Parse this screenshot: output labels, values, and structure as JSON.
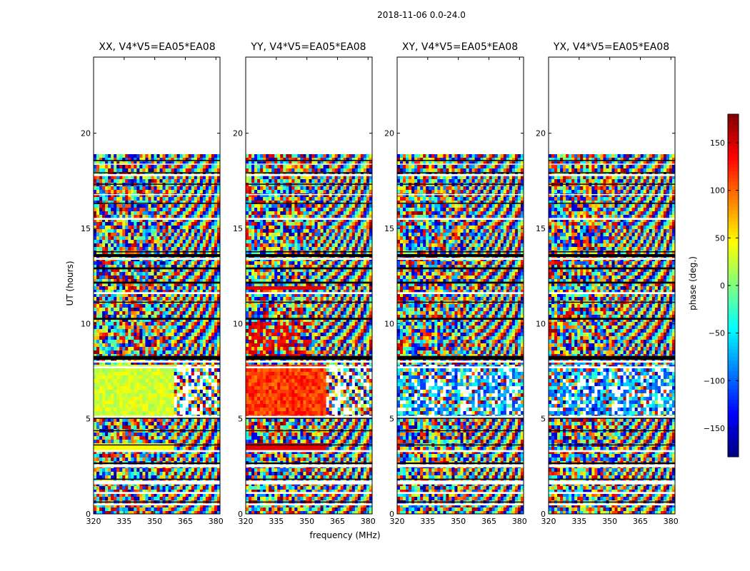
{
  "figure": {
    "suptitle": "2018-11-06 0.0-24.0",
    "xlabel": "frequency (MHz)",
    "ylabel": "UT (hours)",
    "colorbar_label": "phase (deg.)"
  },
  "chart_data": {
    "type": "heatmap",
    "panels": [
      {
        "title": "XX, V4*V5=EA05*EA08",
        "mode": "xx"
      },
      {
        "title": "YY, V4*V5=EA05*EA08",
        "mode": "yy"
      },
      {
        "title": "XY, V4*V5=EA05*EA08",
        "mode": "xy"
      },
      {
        "title": "YX, V4*V5=EA05*EA08",
        "mode": "yx"
      }
    ],
    "x_range": [
      320,
      382
    ],
    "x_ticks": [
      "320",
      "335",
      "350",
      "365",
      "380"
    ],
    "x_tick_values": [
      320,
      335,
      350,
      365,
      380
    ],
    "y_range": [
      0,
      24
    ],
    "y_ticks": [
      "0",
      "5",
      "10",
      "15",
      "20"
    ],
    "y_tick_values": [
      0,
      5,
      10,
      15,
      20
    ],
    "data_end_hour": 18.9,
    "colorbar": {
      "range": [
        -180,
        180
      ],
      "ticks": [
        "150",
        "100",
        "50",
        "0",
        "−50",
        "−100",
        "−150"
      ],
      "tick_values": [
        150,
        100,
        50,
        0,
        -50,
        -100,
        -150
      ],
      "colormap": "jet"
    }
  }
}
